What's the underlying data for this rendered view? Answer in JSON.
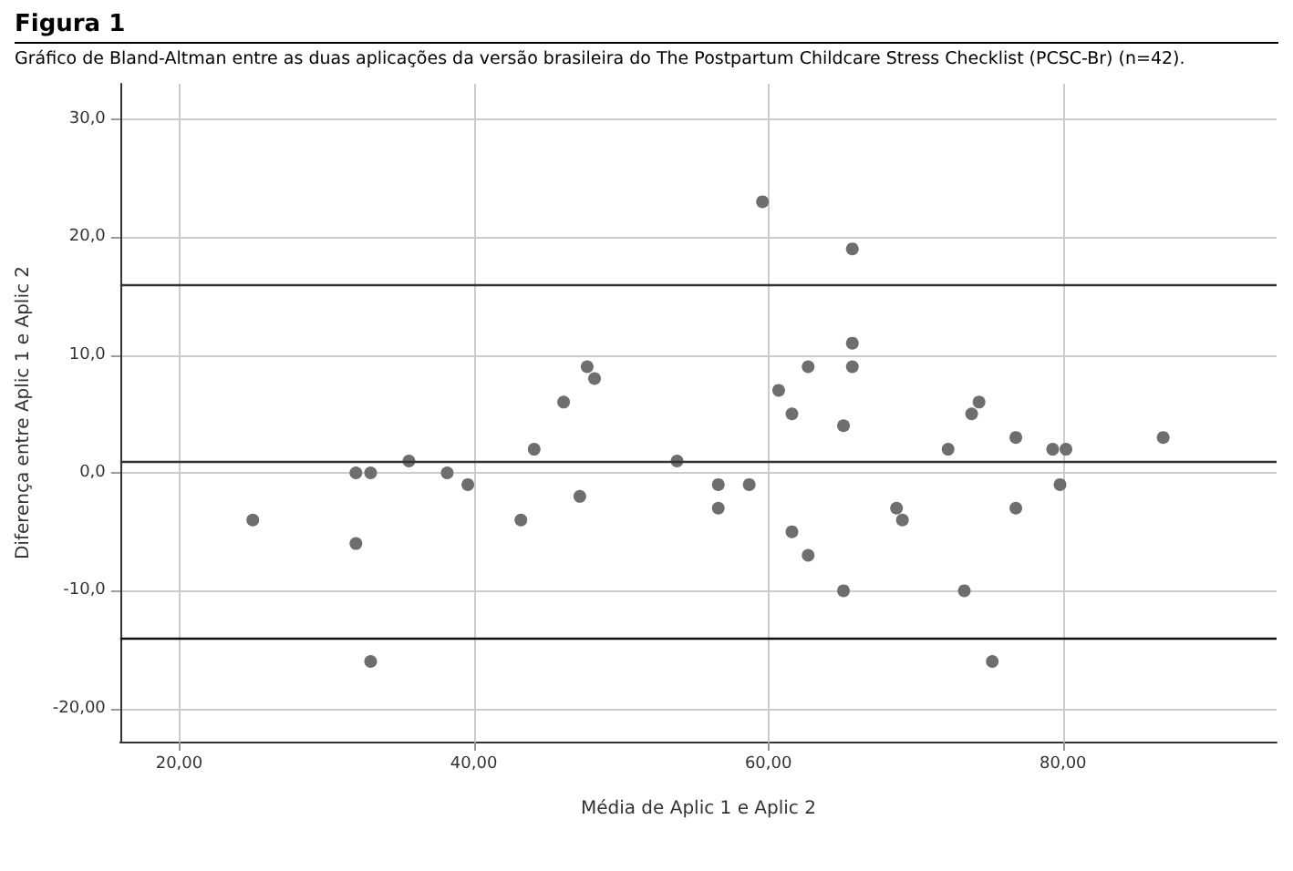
{
  "chart_data": {
    "type": "scatter",
    "title": "Figura 1",
    "subtitle": "Gráfico de Bland-Altman entre as duas aplicações da versão brasileira do The Postpartum Childcare Stress Checklist (PCSC-Br) (n=42).",
    "xlabel": "Média de Aplic 1 e Aplic 2",
    "ylabel": "Diferença entre Aplic 1 e Aplic 2",
    "series": [
      {
        "color": "#6e6e6e",
        "x": [
          25,
          32,
          33,
          32,
          33,
          35.6,
          38.2,
          39.6,
          43.2,
          44.1,
          46.1,
          47.2,
          47.7,
          48.2,
          53.8,
          56.6,
          56.6,
          58.7,
          59.6,
          60.7,
          61.6,
          61.6,
          62.7,
          62.7,
          65.1,
          65.1,
          65.7,
          65.7,
          65.7,
          68.7,
          69.1,
          72.2,
          73.3,
          73.8,
          74.3,
          75.2,
          76.8,
          76.8,
          79.3,
          79.8,
          80.2,
          86.8
        ],
        "values": [
          -4,
          0,
          0,
          -6,
          -16,
          1,
          0,
          -1,
          -4,
          2,
          6,
          -2,
          9,
          8,
          1,
          -1,
          -3,
          -1,
          23,
          7,
          5,
          -5,
          9,
          -7,
          4,
          -10,
          19,
          11,
          9,
          -3,
          -4,
          2,
          -10,
          5,
          6,
          -16,
          3,
          -3,
          2,
          -1,
          2,
          3
        ]
      }
    ],
    "xlim": [
      16,
      94.5
    ],
    "ylim": [
      -22.8,
      33
    ],
    "xticks": [
      {
        "value": 20,
        "label": "20,00"
      },
      {
        "value": 40,
        "label": "40,00"
      },
      {
        "value": 60,
        "label": "60,00"
      },
      {
        "value": 80,
        "label": "80,00"
      }
    ],
    "yticks": [
      {
        "value": -20,
        "label": "-20,00"
      },
      {
        "value": -10,
        "label": "-10,0"
      },
      {
        "value": 0,
        "label": "0,0"
      },
      {
        "value": 10,
        "label": "10,0"
      },
      {
        "value": 20,
        "label": "20,0"
      },
      {
        "value": 30,
        "label": "30,0"
      }
    ],
    "ref_lines": [
      {
        "axis": "y",
        "value": 16,
        "color": "#333333"
      },
      {
        "axis": "y",
        "value": 0.9,
        "color": "#333333"
      },
      {
        "axis": "y",
        "value": -14,
        "color": "#111111"
      }
    ],
    "grid": true,
    "marker": "circle"
  }
}
